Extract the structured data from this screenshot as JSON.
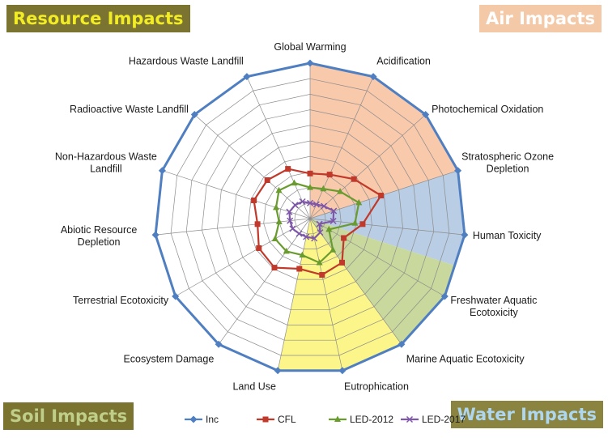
{
  "corners": {
    "resource": {
      "label": "Resource Impacts",
      "bg": "#7a7430",
      "color": "#f2ec26"
    },
    "air": {
      "label": "Air Impacts",
      "bg": "#f4c9a7",
      "color": "#ffffff"
    },
    "soil": {
      "label": "Soil Impacts",
      "bg": "#7a7430",
      "color": "#bfcf8a"
    },
    "water": {
      "label": "Water Impacts",
      "bg": "#8a8440",
      "color": "#aed6ee"
    }
  },
  "sectors": [
    {
      "name": "air",
      "from": 0,
      "to": 6,
      "color": "#f9c9ac"
    },
    {
      "name": "water",
      "from": 6,
      "to": 9,
      "color": "#b9cde4"
    },
    {
      "name": "soil",
      "from": 9,
      "to": 12,
      "color": "#c9d89c"
    },
    {
      "name": "resource",
      "from": 12,
      "to": 16,
      "color": "#fcf68a"
    }
  ],
  "chart_data": {
    "type": "radar",
    "categories": [
      "Global Warming",
      "Acidification",
      "Photochemical Oxidation",
      "Stratospheric Ozone Depletion",
      "Human Toxicity",
      "Freshwater Aquatic Ecotoxicity",
      "Marine Aquatic Ecotoxicity",
      "Eutrophication",
      "Land Use",
      "Ecosystem Damage",
      "Terrestrial Ecotoxicity",
      "Abiotic Resource Depletion",
      "Non-Hazardous Waste Landfill",
      "Radioactive Waste Landfill",
      "Hazardous Waste Landfill"
    ],
    "rmax": 1.0,
    "gridlines": 10,
    "grid": true,
    "legend_position": "bottom",
    "series": [
      {
        "name": "Inc",
        "color": "#4f7fc1",
        "marker": "diamond",
        "values": [
          1,
          1,
          1,
          1,
          1,
          1,
          1,
          1,
          1,
          1,
          1,
          1,
          1,
          1,
          1
        ]
      },
      {
        "name": "CFL",
        "color": "#c0392b",
        "marker": "square",
        "values": [
          0.29,
          0.31,
          0.38,
          0.48,
          0.34,
          0.25,
          0.35,
          0.37,
          0.33,
          0.39,
          0.38,
          0.34,
          0.38,
          0.37,
          0.35
        ]
      },
      {
        "name": "LED-2012",
        "color": "#6a9b2e",
        "marker": "triangle",
        "values": [
          0.2,
          0.21,
          0.26,
          0.33,
          0.29,
          0.14,
          0.25,
          0.29,
          0.24,
          0.26,
          0.26,
          0.2,
          0.23,
          0.27,
          0.25
        ]
      },
      {
        "name": "LED-2017",
        "color": "#7e57a8",
        "marker": "x",
        "values": [
          0.1,
          0.1,
          0.12,
          0.16,
          0.15,
          0.07,
          0.11,
          0.13,
          0.12,
          0.12,
          0.13,
          0.13,
          0.14,
          0.13,
          0.12
        ]
      }
    ]
  }
}
